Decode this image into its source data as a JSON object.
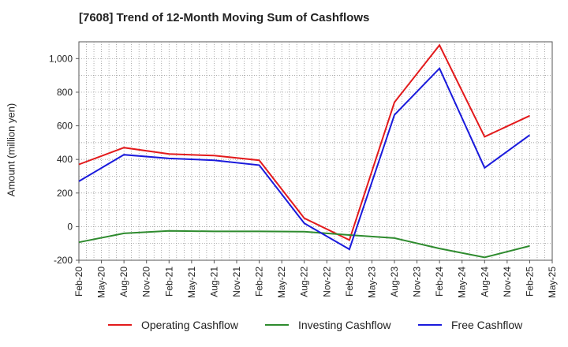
{
  "title": "[7608]  Trend of 12-Month Moving Sum of Cashflows",
  "chart_data": {
    "type": "line",
    "title": "[7608]  Trend of 12-Month Moving Sum of Cashflows",
    "ylabel": "Amount (million yen)",
    "xlabel": "",
    "x": [
      "Feb-20",
      "May-20",
      "Aug-20",
      "Nov-20",
      "Feb-21",
      "May-21",
      "Aug-21",
      "Nov-21",
      "Feb-22",
      "May-22",
      "Aug-22",
      "Nov-22",
      "Feb-23",
      "May-23",
      "Aug-23",
      "Nov-23",
      "Feb-24",
      "May-24",
      "Aug-24",
      "Nov-24",
      "Feb-25",
      "May-25"
    ],
    "ylim": [
      -200,
      1100
    ],
    "yticks": [
      -200,
      0,
      200,
      400,
      600,
      800,
      1000
    ],
    "ytick_labels": [
      "-200",
      "0",
      "200",
      "400",
      "600",
      "800",
      "1,000"
    ],
    "grid": true,
    "legend_position": "bottom",
    "series": [
      {
        "name": "Operating Cashflow",
        "color": "#e31a1c",
        "values": [
          370,
          null,
          470,
          null,
          432,
          null,
          423,
          null,
          395,
          null,
          50,
          null,
          -80,
          null,
          740,
          null,
          1080,
          null,
          535,
          null,
          660,
          null
        ]
      },
      {
        "name": "Investing Cashflow",
        "color": "#2e8b2e",
        "values": [
          -93,
          null,
          -40,
          null,
          -25,
          null,
          -28,
          null,
          -28,
          null,
          -30,
          null,
          -50,
          null,
          -68,
          null,
          -130,
          null,
          -183,
          null,
          -115,
          null
        ]
      },
      {
        "name": "Free Cashflow",
        "color": "#1a1adc",
        "values": [
          270,
          null,
          428,
          null,
          406,
          null,
          395,
          null,
          366,
          null,
          20,
          null,
          -135,
          null,
          665,
          null,
          942,
          null,
          350,
          null,
          545,
          null
        ]
      }
    ]
  }
}
